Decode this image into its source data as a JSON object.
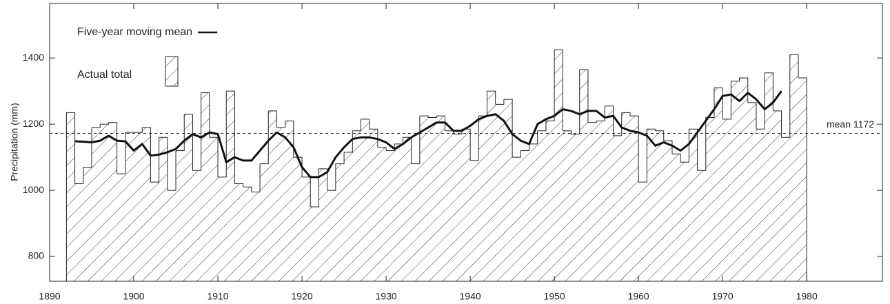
{
  "chart_data": {
    "type": "step-bar-line",
    "y_label": "Precipitation (mm)",
    "xlim": [
      1890,
      1989
    ],
    "xticks": [
      1890,
      1900,
      1910,
      1920,
      1930,
      1940,
      1950,
      1960,
      1970,
      1980
    ],
    "ylim": [
      725,
      1565
    ],
    "yticks": [
      800,
      1000,
      1200,
      1400
    ],
    "mean_line": {
      "value": 1172,
      "label": "mean 1172"
    },
    "series": [
      {
        "name": "Actual total",
        "kind": "bar",
        "color": "#222222",
        "x": [
          1892,
          1893,
          1894,
          1895,
          1896,
          1897,
          1898,
          1899,
          1900,
          1901,
          1902,
          1903,
          1904,
          1905,
          1906,
          1907,
          1908,
          1909,
          1910,
          1911,
          1912,
          1913,
          1914,
          1915,
          1916,
          1917,
          1918,
          1919,
          1920,
          1921,
          1922,
          1923,
          1924,
          1925,
          1926,
          1927,
          1928,
          1929,
          1930,
          1931,
          1932,
          1933,
          1934,
          1935,
          1936,
          1937,
          1938,
          1939,
          1940,
          1941,
          1942,
          1943,
          1944,
          1945,
          1946,
          1947,
          1948,
          1949,
          1950,
          1951,
          1952,
          1953,
          1954,
          1955,
          1956,
          1957,
          1958,
          1959,
          1960,
          1961,
          1962,
          1963,
          1964,
          1965,
          1966,
          1967,
          1968,
          1969,
          1970,
          1971,
          1972,
          1973,
          1974,
          1975,
          1976,
          1977,
          1978,
          1979
        ],
        "values": [
          1235,
          1020,
          1070,
          1190,
          1200,
          1205,
          1050,
          1175,
          1175,
          1190,
          1025,
          1160,
          1000,
          1120,
          1230,
          1060,
          1295,
          1160,
          1040,
          1300,
          1020,
          1010,
          995,
          1080,
          1240,
          1190,
          1210,
          1100,
          1040,
          950,
          1065,
          1000,
          1080,
          1115,
          1180,
          1215,
          1185,
          1130,
          1120,
          1140,
          1160,
          1080,
          1225,
          1220,
          1225,
          1180,
          1170,
          1185,
          1090,
          1225,
          1300,
          1260,
          1275,
          1100,
          1120,
          1140,
          1180,
          1210,
          1425,
          1180,
          1170,
          1365,
          1205,
          1210,
          1255,
          1165,
          1235,
          1225,
          1025,
          1185,
          1180,
          1150,
          1110,
          1085,
          1185,
          1060,
          1220,
          1310,
          1215,
          1330,
          1340,
          1265,
          1185,
          1355,
          1240,
          1160,
          1410,
          1340
        ]
      },
      {
        "name": "Five-year moving mean",
        "kind": "line",
        "color": "#111111",
        "x": [
          1893,
          1894,
          1895,
          1896,
          1897,
          1898,
          1899,
          1900,
          1901,
          1902,
          1903,
          1904,
          1905,
          1906,
          1907,
          1908,
          1909,
          1910,
          1911,
          1912,
          1913,
          1914,
          1915,
          1916,
          1917,
          1918,
          1919,
          1920,
          1921,
          1922,
          1923,
          1924,
          1925,
          1926,
          1927,
          1928,
          1929,
          1930,
          1931,
          1932,
          1933,
          1934,
          1935,
          1936,
          1937,
          1938,
          1939,
          1940,
          1941,
          1942,
          1943,
          1944,
          1945,
          1946,
          1947,
          1948,
          1949,
          1950,
          1951,
          1952,
          1953,
          1954,
          1955,
          1956,
          1957,
          1958,
          1959,
          1960,
          1961,
          1962,
          1963,
          1964,
          1965,
          1966,
          1967,
          1968,
          1969,
          1970,
          1971,
          1972,
          1973,
          1974,
          1975,
          1976,
          1977
        ],
        "values": [
          1148,
          1147,
          1145,
          1150,
          1165,
          1150,
          1148,
          1120,
          1140,
          1105,
          1108,
          1115,
          1125,
          1150,
          1170,
          1160,
          1175,
          1170,
          1085,
          1100,
          1090,
          1090,
          1120,
          1150,
          1175,
          1160,
          1130,
          1070,
          1040,
          1040,
          1055,
          1100,
          1130,
          1155,
          1160,
          1160,
          1155,
          1145,
          1125,
          1140,
          1160,
          1175,
          1190,
          1205,
          1205,
          1180,
          1180,
          1195,
          1215,
          1225,
          1230,
          1210,
          1170,
          1150,
          1140,
          1200,
          1215,
          1225,
          1245,
          1240,
          1230,
          1240,
          1240,
          1220,
          1225,
          1190,
          1180,
          1175,
          1165,
          1135,
          1145,
          1135,
          1120,
          1140,
          1175,
          1210,
          1245,
          1285,
          1290,
          1270,
          1295,
          1275,
          1245,
          1265,
          1300
        ]
      }
    ]
  }
}
